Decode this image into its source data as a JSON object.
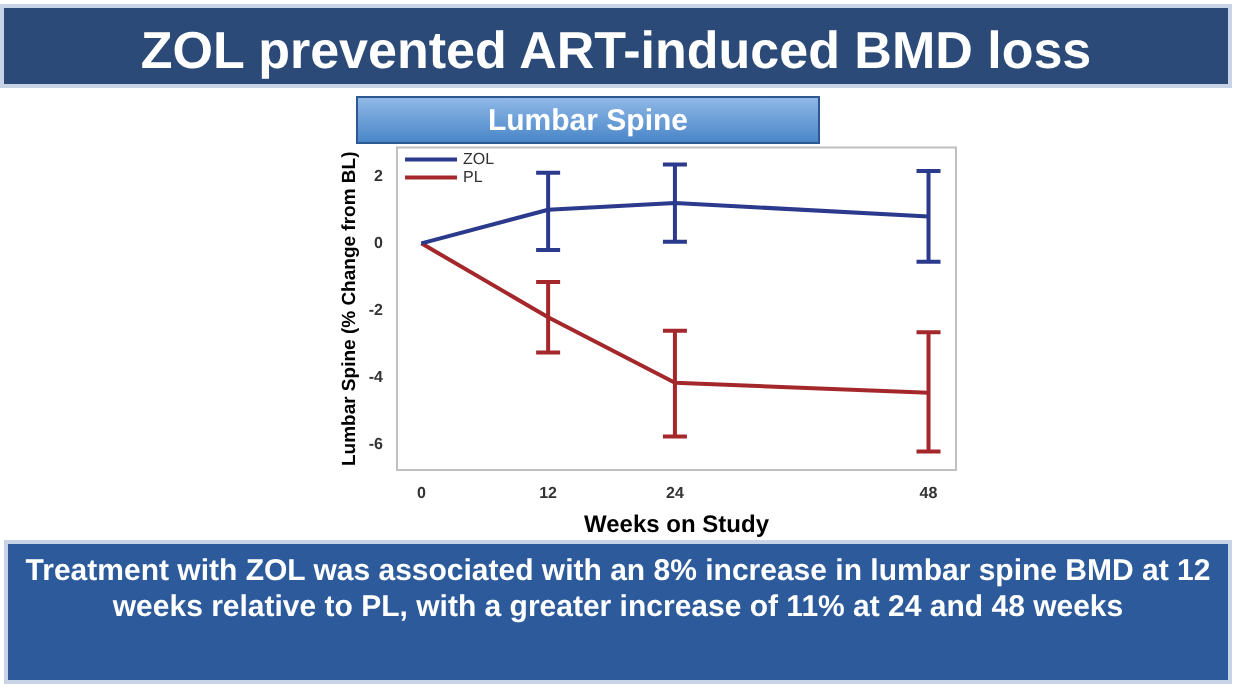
{
  "chart_data": {
    "type": "line",
    "title": "ZOL prevented ART-induced BMD loss",
    "subtitle": "Lumbar Spine",
    "xlabel": "Weeks on Study",
    "ylabel": "Lumbar Spine (% Change from BL)",
    "annotations": [
      "Treatment with ZOL was associated with an 8% increase in lumbar spine BMD at 12 weeks relative to PL, with a greater increase of 11% at 24 and 48 weeks"
    ],
    "x": [
      0,
      12,
      24,
      48
    ],
    "series": [
      {
        "name": "ZOL",
        "color": "#2b3a8c",
        "values": [
          0,
          1.0,
          1.2,
          0.8
        ],
        "errors": [
          null,
          [
            -0.2,
            2.1
          ],
          [
            0.05,
            2.35
          ],
          [
            -0.55,
            2.15
          ]
        ]
      },
      {
        "name": "PL",
        "color": "#a4282b",
        "values": [
          0,
          -2.2,
          -4.15,
          -4.45
        ],
        "errors": [
          null,
          [
            -3.25,
            -1.15
          ],
          [
            -5.75,
            -2.6
          ],
          [
            -6.2,
            -2.65
          ]
        ]
      }
    ],
    "xlim": [
      -2.3,
      50.6
    ],
    "xticks": [
      0,
      12,
      24,
      48
    ],
    "ylim": [
      -6.75,
      2.85
    ],
    "yticks": [
      -6,
      -4,
      -2,
      0,
      2
    ],
    "legend": "top left",
    "marker": "none",
    "line_style": "solid",
    "grid": false
  }
}
